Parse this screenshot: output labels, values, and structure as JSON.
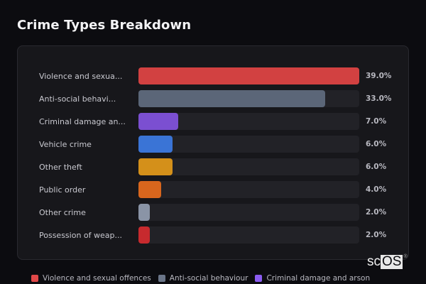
{
  "header": {
    "title": "Crime Types Breakdown"
  },
  "watermark": {
    "prefix": "sc",
    "highlight": "OS",
    "mark": "®"
  },
  "rows": [
    {
      "label": "Violence and sexua...",
      "value_label": "39.0%",
      "pct": 100,
      "color": "#d24141"
    },
    {
      "label": "Anti-social behavi...",
      "value_label": "33.0%",
      "pct": 84.6,
      "color": "#5b6678"
    },
    {
      "label": "Criminal damage an...",
      "value_label": "7.0%",
      "pct": 17.9,
      "color": "#7b4fd1"
    },
    {
      "label": "Vehicle crime",
      "value_label": "6.0%",
      "pct": 15.4,
      "color": "#3a74d6"
    },
    {
      "label": "Other theft",
      "value_label": "6.0%",
      "pct": 15.4,
      "color": "#d4901a"
    },
    {
      "label": "Public order",
      "value_label": "4.0%",
      "pct": 10.3,
      "color": "#d8661d"
    },
    {
      "label": "Other crime",
      "value_label": "2.0%",
      "pct": 5.1,
      "color": "#8a94a6"
    },
    {
      "label": "Possession of weap...",
      "value_label": "2.0%",
      "pct": 5.1,
      "color": "#c72a2e"
    }
  ],
  "legend": [
    {
      "label": "Violence and sexual offences",
      "color": "#e04848"
    },
    {
      "label": "Anti-social behaviour",
      "color": "#6b7689"
    },
    {
      "label": "Criminal damage and arson",
      "color": "#8b5cf0"
    }
  ],
  "chart_data": {
    "type": "bar",
    "orientation": "horizontal",
    "title": "Crime Types Breakdown",
    "categories": [
      "Violence and sexual offences",
      "Anti-social behaviour",
      "Criminal damage and arson",
      "Vehicle crime",
      "Other theft",
      "Public order",
      "Other crime",
      "Possession of weapons"
    ],
    "values": [
      39.0,
      33.0,
      7.0,
      6.0,
      6.0,
      4.0,
      2.0,
      2.0
    ],
    "unit": "%",
    "xlabel": "",
    "ylabel": "",
    "xlim": [
      0,
      39
    ],
    "grid": false,
    "legend_position": "bottom",
    "legend_entries": [
      "Violence and sexual offences",
      "Anti-social behaviour",
      "Criminal damage and arson"
    ]
  }
}
